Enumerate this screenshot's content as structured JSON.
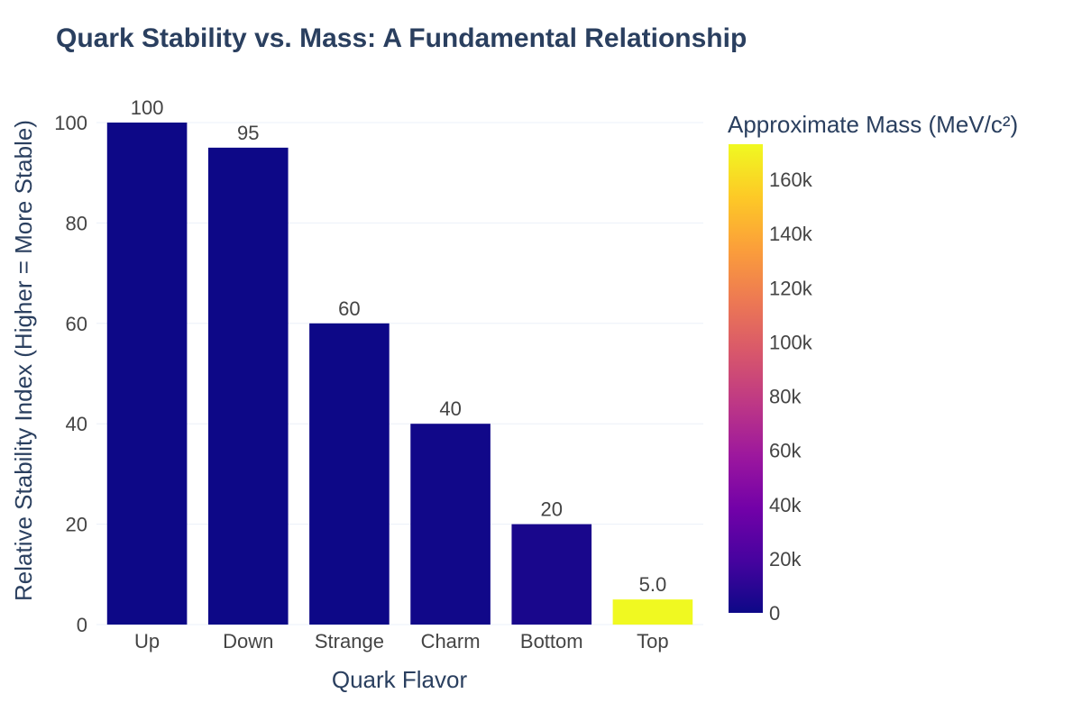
{
  "chart_data": {
    "type": "bar",
    "title": "Quark Stability vs. Mass: A Fundamental Relationship",
    "xlabel": "Quark Flavor",
    "ylabel": "Relative Stability Index (Higher = More Stable)",
    "categories": [
      "Up",
      "Down",
      "Strange",
      "Charm",
      "Bottom",
      "Top"
    ],
    "values": [
      100,
      95,
      60,
      40,
      20,
      5
    ],
    "value_labels": [
      "100",
      "95",
      "60",
      "40",
      "20",
      "5.0"
    ],
    "color_values": [
      2.2,
      4.7,
      96,
      1270,
      4180,
      173000
    ],
    "ylim": [
      0,
      100
    ],
    "yticks": [
      "0",
      "20",
      "40",
      "60",
      "80",
      "100"
    ],
    "grid": true,
    "colorbar": {
      "title": "Approximate Mass (MeV/c²)",
      "range": [
        0,
        173000
      ],
      "ticks": [
        "0",
        "20k",
        "40k",
        "60k",
        "80k",
        "100k",
        "120k",
        "140k",
        "160k"
      ],
      "colorscale": [
        "#0d0887",
        "#46039f",
        "#7201a8",
        "#9c179e",
        "#bd3786",
        "#d8576b",
        "#ed7953",
        "#fb9f3a",
        "#fdca26",
        "#f0f921"
      ]
    }
  }
}
